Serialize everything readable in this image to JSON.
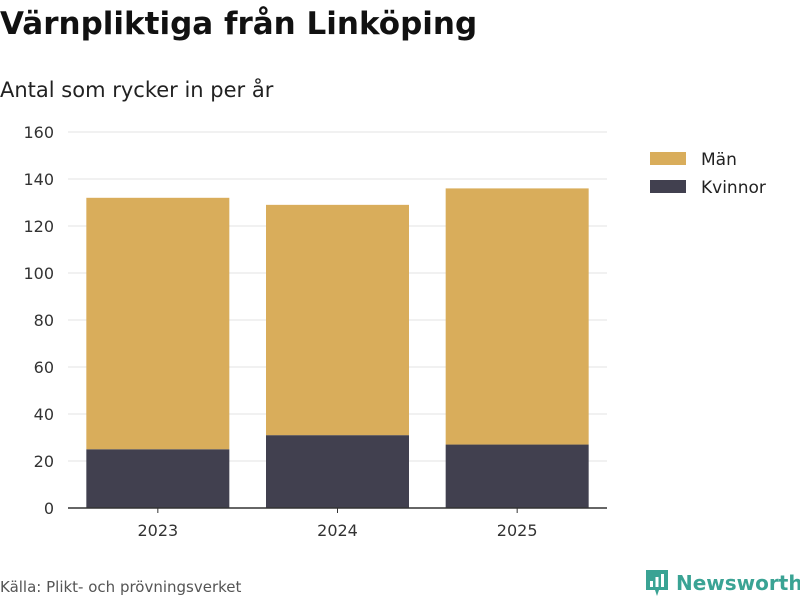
{
  "title": "Värnpliktiga från Linköping",
  "subtitle": "Antal som rycker in per år",
  "source": "Källa: Plikt- och prövningsverket",
  "brand": "Newsworthy",
  "colors": {
    "man": "#d9ad5b",
    "kvinnor": "#41404f",
    "grid": "#e3e3e3",
    "axis": "#333333",
    "brand": "#3aa394"
  },
  "chart_data": {
    "type": "bar",
    "stacked": true,
    "categories": [
      "2023",
      "2024",
      "2025"
    ],
    "series": [
      {
        "name": "Kvinnor",
        "color": "#41404f",
        "values": [
          25,
          31,
          27
        ]
      },
      {
        "name": "Män",
        "color": "#d9ad5b",
        "values": [
          107,
          98,
          109
        ]
      }
    ],
    "legend": [
      "Män",
      "Kvinnor"
    ],
    "ylim": [
      0,
      160
    ],
    "yticks": [
      0,
      20,
      40,
      60,
      80,
      100,
      120,
      140,
      160
    ],
    "xlabel": "",
    "ylabel": "",
    "grid": true,
    "legend_position": "top-right"
  }
}
